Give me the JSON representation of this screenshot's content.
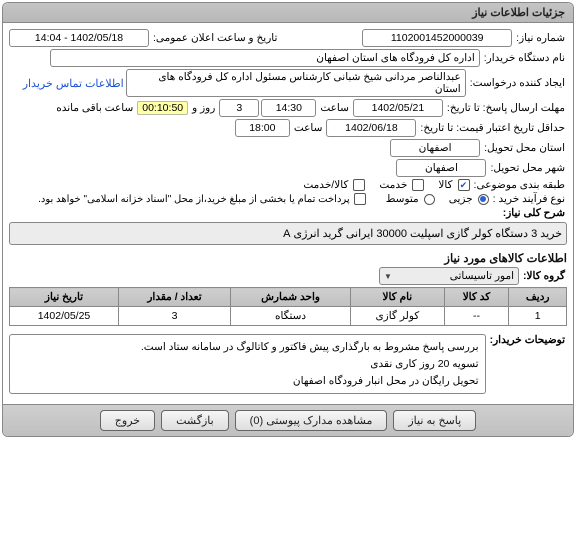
{
  "panel": {
    "title": "جزئیات اطلاعات نیاز"
  },
  "fields": {
    "need_no_lbl": "شماره نیاز:",
    "need_no": "1102001452000039",
    "announce_lbl": "تاریخ و ساعت اعلان عمومی:",
    "announce": "1402/05/18 - 14:04",
    "buyer_org_lbl": "نام دستگاه خریدار:",
    "buyer_org": "اداره کل فرودگاه های استان اصفهان",
    "creator_lbl": "ایجاد کننده درخواست:",
    "creator": "عبدالناصر مردانی شیخ شبانی کارشناس مسئول  اداره کل فرودگاه های استان",
    "contact_link": "اطلاعات تماس خریدار",
    "deadline_lbl": "مهلت ارسال پاسخ: تا تاریخ:",
    "deadline_date": "1402/05/21",
    "time_word": "ساعت",
    "deadline_time": "14:30",
    "remain_days": "3",
    "days_and_word": "روز و",
    "countdown": "00:10:50",
    "remain_suffix": "ساعت باقی مانده",
    "min_valid_lbl": "حداقل تاریخ اعتبار قیمت: تا تاریخ:",
    "min_valid_date": "1402/06/18",
    "min_valid_time": "18:00",
    "delivery_loc_lbl": "استان محل تحویل:",
    "delivery_loc": "اصفهان",
    "delivery_city_lbl": "شهر محل تحویل:",
    "delivery_city": "اصفهان",
    "classify_lbl": "طبقه بندی موضوعی:",
    "buy_type_lbl": "نوع فرآیند خرید :",
    "installment_note": "پرداخت تمام یا بخشی از مبلغ خرید،از محل \"اسناد خزانه اسلامی\" خواهد بود."
  },
  "classify_options": [
    {
      "label": "کالا",
      "checked": true
    },
    {
      "label": "خدمت",
      "checked": false
    },
    {
      "label": "کالا/خدمت",
      "checked": false
    }
  ],
  "buy_type_options": [
    {
      "label": "جزیی",
      "selected": true
    },
    {
      "label": "متوسط",
      "selected": false
    }
  ],
  "installment_checked": false,
  "summary": {
    "label": "شرح کلی نیاز:",
    "text": "خرید 3 دستگاه کولر گازی اسپلیت 30000 ایرانی گرید انرژی A"
  },
  "items_section_title": "اطلاعات کالاهای مورد نیاز",
  "group": {
    "label": "گروه کالا:",
    "value": "امور تاسیساتی"
  },
  "table": {
    "headers": [
      "ردیف",
      "کد کالا",
      "نام کالا",
      "واحد شمارش",
      "تعداد / مقدار",
      "تاریخ نیاز"
    ],
    "rows": [
      {
        "idx": "1",
        "code": "--",
        "name": "کولر گازی",
        "unit": "دستگاه",
        "qty": "3",
        "date": "1402/05/25"
      }
    ]
  },
  "buyer_notes": {
    "label": "توضیحات خریدار:",
    "line1": "بررسی پاسخ مشروط به بارگذاری پیش فاکتور و کاتالوگ در سامانه ستاد است.",
    "line2": "تسویه 20 روز کاری نقدی",
    "line3": "تحویل رایگان در محل انبار  فرودگاه اصفهان"
  },
  "buttons": {
    "reply": "پاسخ به نیاز",
    "attachments": "مشاهده مدارک پیوستی (0)",
    "back": "بازگشت",
    "exit": "خروج"
  }
}
